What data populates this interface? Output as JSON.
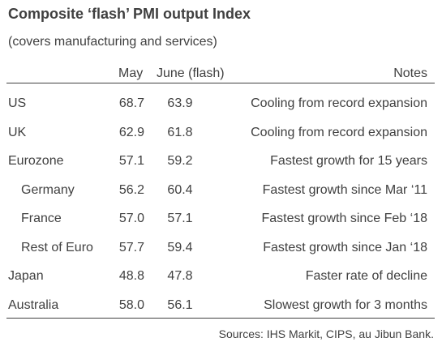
{
  "title": "Composite ‘flash’ PMI output Index",
  "subtitle": "(covers manufacturing and services)",
  "source": "Sources: IHS Markit, CIPS, au Jibun Bank.",
  "chart_data": {
    "type": "table",
    "columns": [
      "",
      "May",
      "June (flash)",
      "Notes"
    ],
    "rows": [
      {
        "label": "US",
        "indent": false,
        "may": "68.7",
        "june": "63.9",
        "notes": "Cooling from record expansion"
      },
      {
        "label": "UK",
        "indent": false,
        "may": "62.9",
        "june": "61.8",
        "notes": "Cooling from record expansion"
      },
      {
        "label": "Eurozone",
        "indent": false,
        "may": "57.1",
        "june": "59.2",
        "notes": "Fastest growth for 15 years"
      },
      {
        "label": "Germany",
        "indent": true,
        "may": "56.2",
        "june": "60.4",
        "notes": "Fastest growth since Mar ‘11"
      },
      {
        "label": "France",
        "indent": true,
        "may": "57.0",
        "june": "57.1",
        "notes": "Fastest growth since Feb ‘18"
      },
      {
        "label": "Rest of Euro",
        "indent": true,
        "may": "57.7",
        "june": "59.4",
        "notes": "Fastest growth since Jan ‘18"
      },
      {
        "label": "Japan",
        "indent": false,
        "may": "48.8",
        "june": "47.8",
        "notes": "Faster rate of decline"
      },
      {
        "label": "Australia",
        "indent": false,
        "may": "58.0",
        "june": "56.1",
        "notes": "Slowest growth for 3 months"
      }
    ]
  }
}
